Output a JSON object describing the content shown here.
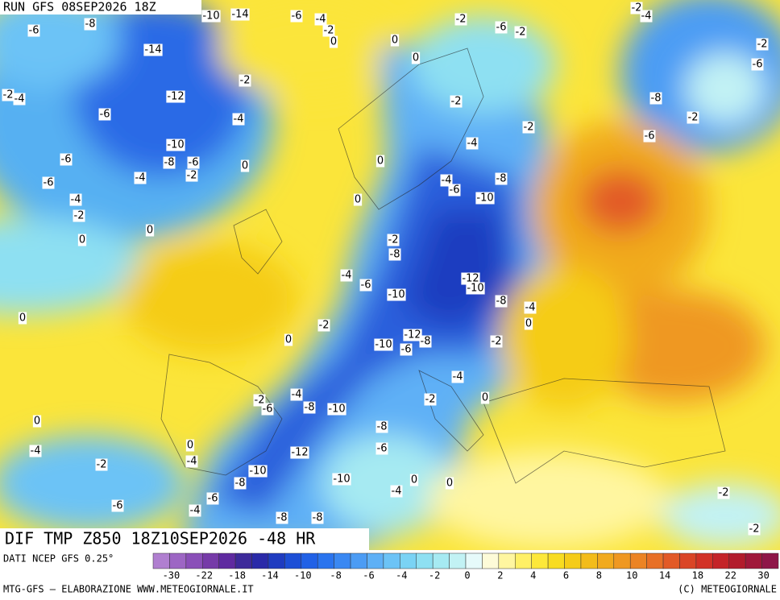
{
  "header": {
    "run": "RUN GFS 08SEP2026 18Z"
  },
  "map": {
    "title": "DIF TMP Z850 18Z10SEP2026 -48 HR",
    "contour_labels": [
      -6,
      -8,
      -10,
      -14,
      -6,
      -4,
      -2,
      0,
      0,
      -14,
      -2,
      -12,
      -2,
      -4,
      -6,
      -4,
      -10,
      -8,
      -6,
      -2,
      -4,
      -6,
      -6,
      -4,
      -2,
      0,
      0,
      0,
      0,
      -2,
      -6,
      -2,
      0,
      -2,
      -2,
      -4,
      -4,
      -6,
      -8,
      -10,
      0,
      0,
      -2,
      -8,
      -4,
      -6,
      -10,
      -12,
      -10,
      -8,
      -4,
      0,
      -2,
      0,
      -10,
      -12,
      -8,
      -6,
      -2,
      -4,
      -2,
      0,
      -2,
      -4,
      -8,
      -10,
      -6,
      0,
      -8,
      -6,
      -12,
      0,
      -4,
      -2,
      -4,
      -10,
      -8,
      -10,
      -4,
      0,
      0,
      -6,
      -4,
      -6,
      -8,
      -8,
      -2,
      -2,
      -2,
      -4,
      -2,
      -6,
      -8,
      -2,
      -6
    ]
  },
  "legend": {
    "source": "DATI NCEP GFS 0.25°",
    "colors": [
      "#b07fd0",
      "#9d66c4",
      "#8a4fb8",
      "#763aa8",
      "#5f2aa0",
      "#3d2a9a",
      "#2a2aa8",
      "#1f3cc0",
      "#1d4fd6",
      "#2161e6",
      "#2a74ee",
      "#3a88f2",
      "#4c9cf4",
      "#5eb0f6",
      "#6cc3f6",
      "#7ad3f4",
      "#8ee0f2",
      "#a6eaf2",
      "#c2f2f4",
      "#e6fafa",
      "#fdfbd8",
      "#fff6a0",
      "#fff066",
      "#fde83a",
      "#f8dc20",
      "#f5cc18",
      "#f3bc1a",
      "#f1aa1e",
      "#ef9822",
      "#ec8424",
      "#e87026",
      "#e25a26",
      "#da4526",
      "#d23226",
      "#c42428",
      "#b21c2c",
      "#a0183a",
      "#8e1648"
    ],
    "ticks": [
      -30,
      -22,
      -18,
      -14,
      -10,
      -8,
      -6,
      -4,
      -2,
      0,
      2,
      4,
      6,
      8,
      10,
      14,
      18,
      22,
      30
    ]
  },
  "footer": {
    "left": "MTG-GFS — ELABORAZIONE WWW.METEOGIORNALE.IT",
    "right": "(C) METEOGIORNALE"
  }
}
